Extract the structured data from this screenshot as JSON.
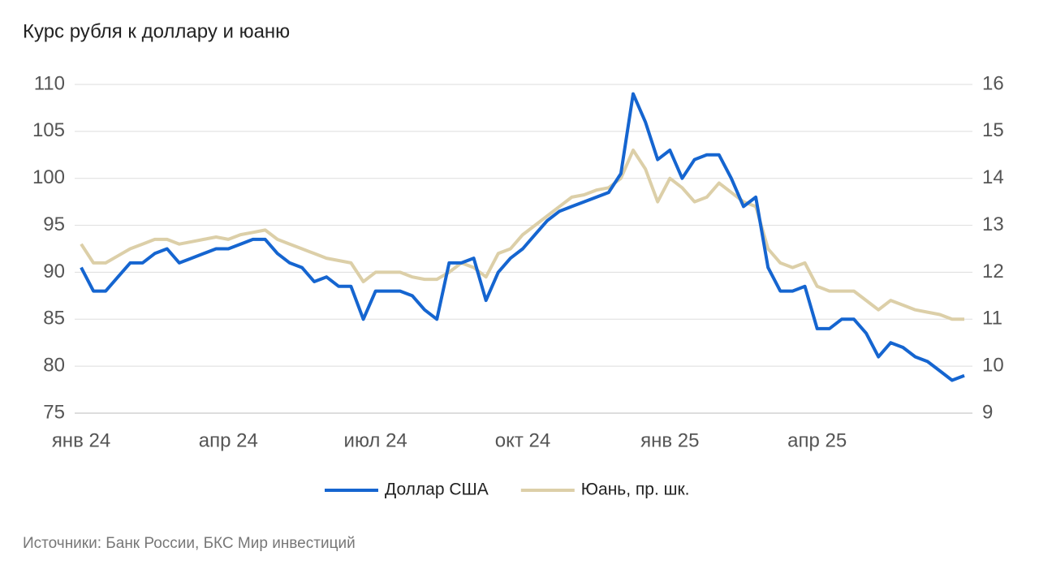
{
  "chart_data": {
    "type": "line",
    "title": "Курс рубля к доллару и юаню",
    "source": "Источники: Банк России, БКС Мир инвестиций",
    "categories": [
      "янв 24",
      null,
      null,
      null,
      null,
      null,
      null,
      null,
      null,
      null,
      null,
      null,
      "апр 24",
      null,
      null,
      null,
      null,
      null,
      null,
      null,
      null,
      null,
      null,
      null,
      "июл 24",
      null,
      null,
      null,
      null,
      null,
      null,
      null,
      null,
      null,
      null,
      null,
      "окт 24",
      null,
      null,
      null,
      null,
      null,
      null,
      null,
      null,
      null,
      null,
      null,
      "янв 25",
      null,
      null,
      null,
      null,
      null,
      null,
      null,
      null,
      null,
      null,
      null,
      "апр 25",
      null,
      null,
      null,
      null,
      null,
      null,
      null,
      null,
      null,
      null,
      null,
      null
    ],
    "series": [
      {
        "name": "Доллар США",
        "color": "#1565d0",
        "values": [
          90.5,
          88,
          88,
          89.5,
          91,
          91,
          92,
          92.5,
          91,
          91.5,
          92,
          92.5,
          92.5,
          93,
          93.5,
          93.5,
          92,
          91,
          90.5,
          89,
          89.5,
          88.5,
          88.5,
          85,
          88,
          88,
          88,
          87.5,
          86,
          85,
          91,
          91,
          91.5,
          87,
          90,
          91.5,
          92.5,
          94,
          95.5,
          96.5,
          97,
          97.5,
          98,
          98.5,
          100.5,
          109,
          106,
          102,
          103,
          100,
          102,
          102.5,
          102.5,
          100,
          97,
          98,
          90.5,
          88,
          88,
          88.5,
          84,
          84,
          85,
          85,
          83.5,
          81,
          82.5,
          82,
          81,
          80.5,
          79.5,
          78.5,
          79
        ]
      },
      {
        "name": "Юань, пр. шк.",
        "color": "#dccfa8",
        "axis": "y2",
        "values": [
          12.6,
          12.2,
          12.2,
          12.35,
          12.5,
          12.6,
          12.7,
          12.7,
          12.6,
          12.65,
          12.7,
          12.75,
          12.7,
          12.8,
          12.85,
          12.9,
          12.7,
          12.6,
          12.5,
          12.4,
          12.3,
          12.25,
          12.2,
          11.8,
          12,
          12,
          12,
          11.9,
          11.85,
          11.85,
          12,
          12.2,
          12.1,
          11.9,
          12.4,
          12.5,
          12.8,
          13,
          13.2,
          13.4,
          13.6,
          13.65,
          13.75,
          13.8,
          14,
          14.6,
          14.2,
          13.5,
          14,
          13.8,
          13.5,
          13.6,
          13.9,
          13.7,
          13.5,
          13.4,
          12.5,
          12.2,
          12.1,
          12.2,
          11.7,
          11.6,
          11.6,
          11.6,
          11.4,
          11.2,
          11.4,
          11.3,
          11.2,
          11.15,
          11.1,
          11,
          11
        ]
      }
    ],
    "ylim": [
      75,
      110
    ],
    "yticks": [
      75,
      80,
      85,
      90,
      95,
      100,
      105,
      110
    ],
    "y2lim": [
      9,
      16
    ],
    "y2ticks": [
      9,
      10,
      11,
      12,
      13,
      14,
      15,
      16
    ],
    "grid": true,
    "legend": "bottom"
  }
}
